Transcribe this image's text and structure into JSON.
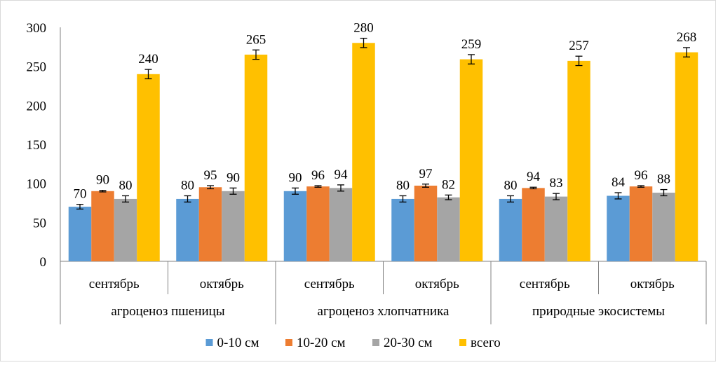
{
  "chart_data": {
    "type": "bar",
    "title": "",
    "xlabel": "",
    "ylabel": "",
    "ylim": [
      0,
      300
    ],
    "yticks": [
      "0",
      "50",
      "100",
      "150",
      "200",
      "250",
      "300"
    ],
    "grid": false,
    "legend_position": "bottom",
    "categories": [
      "сентябрь",
      "октябрь",
      "сентябрь",
      "октябрь",
      "сентябрь",
      "октябрь"
    ],
    "groups": [
      {
        "label": "агроценоз пшеницы",
        "span": [
          0,
          1
        ]
      },
      {
        "label": "агроценоз хлопчатника",
        "span": [
          2,
          3
        ]
      },
      {
        "label": "природные экосистемы",
        "span": [
          4,
          5
        ]
      }
    ],
    "series": [
      {
        "name": "0-10 см",
        "color": "#5B9BD5",
        "values": [
          70,
          80,
          90,
          80,
          80,
          84
        ],
        "errors": [
          3,
          4,
          4,
          4,
          4,
          4
        ]
      },
      {
        "name": "10-20 см",
        "color": "#ED7D31",
        "values": [
          90,
          95,
          96,
          97,
          94,
          96
        ],
        "errors": [
          1,
          2,
          1,
          2,
          1,
          1
        ]
      },
      {
        "name": "20-30 см",
        "color": "#A5A5A5",
        "values": [
          80,
          90,
          94,
          82,
          83,
          88
        ],
        "errors": [
          4,
          4,
          4,
          3,
          4,
          4
        ]
      },
      {
        "name": "всего",
        "color": "#FFC000",
        "values": [
          240,
          265,
          280,
          259,
          257,
          268
        ],
        "errors": [
          6,
          6,
          6,
          6,
          6,
          6
        ]
      }
    ]
  }
}
